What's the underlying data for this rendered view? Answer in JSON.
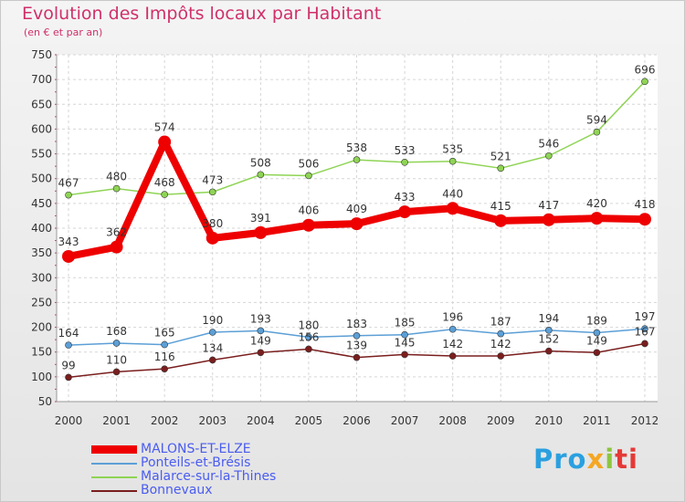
{
  "chart_data": {
    "type": "line",
    "title": "Evolution des Impôts locaux par Habitant",
    "subtitle": "(en € et par an)",
    "xlabel": "",
    "ylabel": "",
    "categories": [
      "2000",
      "2001",
      "2002",
      "2003",
      "2004",
      "2005",
      "2006",
      "2007",
      "2008",
      "2009",
      "2010",
      "2011",
      "2012"
    ],
    "ylim": [
      50,
      750
    ],
    "yticks": [
      50,
      100,
      150,
      200,
      250,
      300,
      350,
      400,
      450,
      500,
      550,
      600,
      650,
      700,
      750
    ],
    "grid": true,
    "series": [
      {
        "name": "MALONS-ET-ELZE",
        "color": "#ee0000",
        "values": [
          343,
          362,
          574,
          380,
          391,
          406,
          409,
          433,
          440,
          415,
          417,
          420,
          418
        ]
      },
      {
        "name": "Ponteils-et-Brésis",
        "color": "#5c9fd6",
        "values": [
          164,
          168,
          165,
          190,
          193,
          180,
          183,
          185,
          196,
          187,
          194,
          189,
          197
        ]
      },
      {
        "name": "Malarce-sur-la-Thines",
        "color": "#8fd455",
        "values": [
          467,
          480,
          468,
          473,
          508,
          506,
          538,
          533,
          535,
          521,
          546,
          594,
          696
        ]
      },
      {
        "name": "Bonnevaux",
        "color": "#7a1e1e",
        "values": [
          99,
          110,
          116,
          134,
          149,
          156,
          139,
          145,
          142,
          142,
          152,
          149,
          167
        ]
      }
    ]
  },
  "legend": {
    "items": [
      {
        "label": "MALONS-ET-ELZE",
        "color": "#ee0000"
      },
      {
        "label": "Ponteils-et-Brésis",
        "color": "#5c9fd6"
      },
      {
        "label": "Malarce-sur-la-Thines",
        "color": "#8fd455"
      },
      {
        "label": "Bonnevaux",
        "color": "#7a1e1e"
      }
    ]
  },
  "logo": {
    "p1": "Pro",
    "p2": "x",
    "p3": "i",
    "p4": "ti"
  }
}
